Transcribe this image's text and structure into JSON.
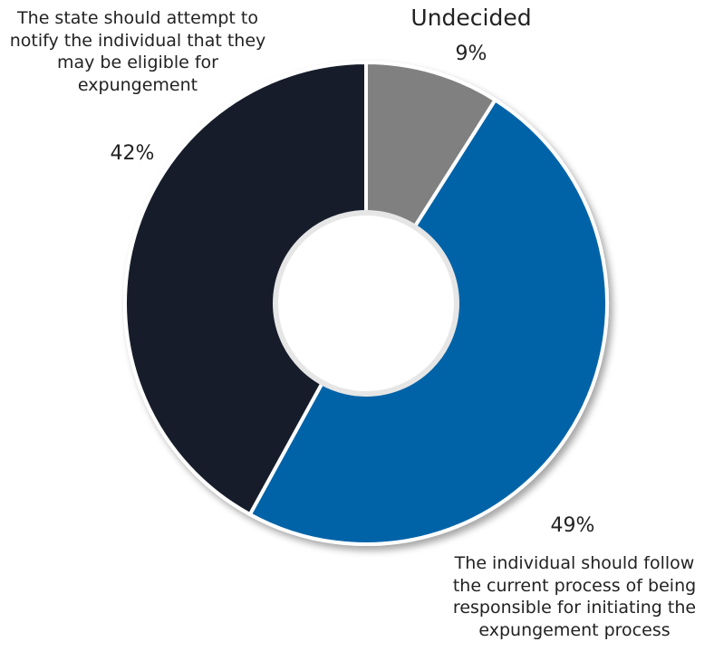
{
  "chart_data": {
    "type": "pie",
    "donut": true,
    "slices": [
      {
        "label": "Undecided",
        "value": 9,
        "value_label": "9%",
        "color": "#808080"
      },
      {
        "label": "The individual should follow the current process of being responsible for initiating the expungement process",
        "value": 49,
        "value_label": "49%",
        "color": "#0563a8"
      },
      {
        "label": "The state should attempt to notify the individual that they may be eligible for expungement",
        "value": 42,
        "value_label": "42%",
        "color": "#161f2b"
      }
    ]
  }
}
